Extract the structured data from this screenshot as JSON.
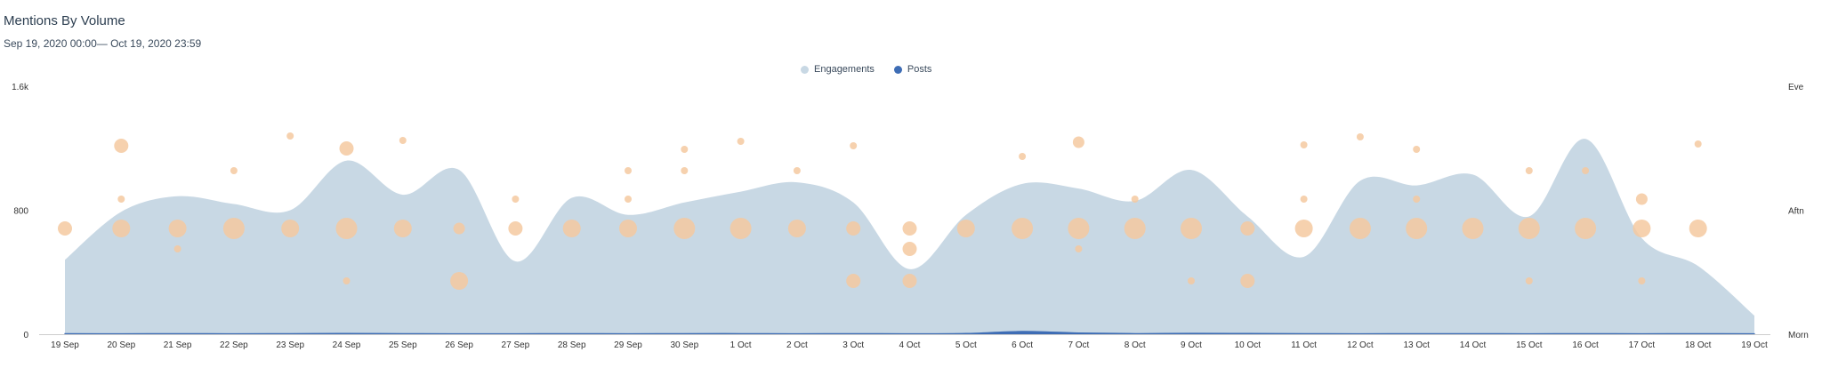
{
  "header": {
    "title": "Mentions By Volume",
    "date_range": "Sep 19, 2020 00:00— Oct 19, 2020 23:59"
  },
  "colors": {
    "engagements": "#c8d8e4",
    "posts": "#3e6db5",
    "bubble": "#f4c9a0",
    "axis": "#cccccc"
  },
  "chart_data": {
    "type": "area",
    "categories": [
      "19 Sep",
      "20 Sep",
      "21 Sep",
      "22 Sep",
      "23 Sep",
      "24 Sep",
      "25 Sep",
      "26 Sep",
      "27 Sep",
      "28 Sep",
      "29 Sep",
      "30 Sep",
      "1 Oct",
      "2 Oct",
      "3 Oct",
      "4 Oct",
      "5 Oct",
      "6 Oct",
      "7 Oct",
      "8 Oct",
      "9 Oct",
      "10 Oct",
      "11 Oct",
      "12 Oct",
      "13 Oct",
      "14 Oct",
      "15 Oct",
      "16 Oct",
      "17 Oct",
      "18 Oct",
      "19 Oct"
    ],
    "ylim": [
      0,
      1600
    ],
    "y_ticks": [
      "0",
      "800",
      "1.6k"
    ],
    "right_ticks": [
      "Morn",
      "Aftn",
      "Eve"
    ],
    "legend": {
      "placement": "top-center"
    },
    "grid": false,
    "series": [
      {
        "name": "Engagements",
        "values": [
          480,
          790,
          890,
          840,
          800,
          1120,
          900,
          1060,
          470,
          880,
          770,
          850,
          920,
          980,
          850,
          420,
          770,
          970,
          940,
          860,
          1060,
          760,
          500,
          990,
          960,
          1030,
          760,
          1260,
          620,
          440,
          120
        ]
      },
      {
        "name": "Posts",
        "values": [
          4,
          3,
          4,
          3,
          4,
          5,
          4,
          3,
          3,
          4,
          3,
          4,
          4,
          3,
          4,
          3,
          5,
          18,
          8,
          4,
          6,
          5,
          4,
          3,
          4,
          4,
          3,
          4,
          3,
          4,
          3
        ]
      }
    ],
    "bubbles": [
      {
        "day": "19 Sep",
        "slot": "Aftn",
        "size": 3
      },
      {
        "day": "20 Sep",
        "slot": "Aftn",
        "size": 4
      },
      {
        "day": "20 Sep",
        "slot": "Eve",
        "size": 3
      },
      {
        "day": "20 Sep",
        "slot": "Aftn+",
        "size": 1
      },
      {
        "day": "21 Sep",
        "slot": "Aftn",
        "size": 4
      },
      {
        "day": "21 Sep",
        "slot": "Aftn-",
        "size": 1
      },
      {
        "day": "22 Sep",
        "slot": "Aftn",
        "size": 5
      },
      {
        "day": "22 Sep",
        "slot": "Eve-",
        "size": 1
      },
      {
        "day": "23 Sep",
        "slot": "Aftn",
        "size": 4
      },
      {
        "day": "23 Sep",
        "slot": "Eve",
        "size": 1
      },
      {
        "day": "24 Sep",
        "slot": "Aftn",
        "size": 5
      },
      {
        "day": "24 Sep",
        "slot": "Eve",
        "size": 3
      },
      {
        "day": "24 Sep",
        "slot": "Morn+",
        "size": 1
      },
      {
        "day": "25 Sep",
        "slot": "Aftn",
        "size": 4
      },
      {
        "day": "25 Sep",
        "slot": "Eve",
        "size": 1
      },
      {
        "day": "26 Sep",
        "slot": "Aftn",
        "size": 2
      },
      {
        "day": "26 Sep",
        "slot": "Morn+",
        "size": 4
      },
      {
        "day": "27 Sep",
        "slot": "Aftn",
        "size": 3
      },
      {
        "day": "27 Sep",
        "slot": "Aftn+",
        "size": 1
      },
      {
        "day": "28 Sep",
        "slot": "Aftn",
        "size": 4
      },
      {
        "day": "29 Sep",
        "slot": "Aftn",
        "size": 4
      },
      {
        "day": "29 Sep",
        "slot": "Aftn+",
        "size": 1
      },
      {
        "day": "29 Sep",
        "slot": "Eve-",
        "size": 1
      },
      {
        "day": "30 Sep",
        "slot": "Aftn",
        "size": 5
      },
      {
        "day": "30 Sep",
        "slot": "Eve",
        "size": 1
      },
      {
        "day": "30 Sep",
        "slot": "Eve-",
        "size": 1
      },
      {
        "day": "1 Oct",
        "slot": "Aftn",
        "size": 5
      },
      {
        "day": "1 Oct",
        "slot": "Eve",
        "size": 1
      },
      {
        "day": "2 Oct",
        "slot": "Aftn",
        "size": 4
      },
      {
        "day": "2 Oct",
        "slot": "Eve-",
        "size": 1
      },
      {
        "day": "3 Oct",
        "slot": "Aftn",
        "size": 3
      },
      {
        "day": "3 Oct",
        "slot": "Morn+",
        "size": 3
      },
      {
        "day": "3 Oct",
        "slot": "Eve",
        "size": 1
      },
      {
        "day": "4 Oct",
        "slot": "Aftn",
        "size": 3
      },
      {
        "day": "4 Oct",
        "slot": "Aftn-",
        "size": 3
      },
      {
        "day": "4 Oct",
        "slot": "Morn+",
        "size": 3
      },
      {
        "day": "5 Oct",
        "slot": "Aftn",
        "size": 4
      },
      {
        "day": "6 Oct",
        "slot": "Aftn",
        "size": 5
      },
      {
        "day": "6 Oct",
        "slot": "Eve",
        "size": 1
      },
      {
        "day": "7 Oct",
        "slot": "Aftn",
        "size": 5
      },
      {
        "day": "7 Oct",
        "slot": "Eve",
        "size": 2
      },
      {
        "day": "7 Oct",
        "slot": "Aftn-",
        "size": 1
      },
      {
        "day": "8 Oct",
        "slot": "Aftn",
        "size": 5
      },
      {
        "day": "8 Oct",
        "slot": "Aftn+",
        "size": 1
      },
      {
        "day": "9 Oct",
        "slot": "Aftn",
        "size": 5
      },
      {
        "day": "9 Oct",
        "slot": "Morn+",
        "size": 1
      },
      {
        "day": "10 Oct",
        "slot": "Aftn",
        "size": 3
      },
      {
        "day": "10 Oct",
        "slot": "Morn+",
        "size": 3
      },
      {
        "day": "11 Oct",
        "slot": "Aftn",
        "size": 4
      },
      {
        "day": "11 Oct",
        "slot": "Eve",
        "size": 1
      },
      {
        "day": "11 Oct",
        "slot": "Aftn+",
        "size": 1
      },
      {
        "day": "12 Oct",
        "slot": "Aftn",
        "size": 5
      },
      {
        "day": "12 Oct",
        "slot": "Eve",
        "size": 1
      },
      {
        "day": "13 Oct",
        "slot": "Aftn",
        "size": 5
      },
      {
        "day": "13 Oct",
        "slot": "Eve",
        "size": 1
      },
      {
        "day": "13 Oct",
        "slot": "Aftn+",
        "size": 1
      },
      {
        "day": "14 Oct",
        "slot": "Aftn",
        "size": 5
      },
      {
        "day": "15 Oct",
        "slot": "Aftn",
        "size": 5
      },
      {
        "day": "15 Oct",
        "slot": "Eve-",
        "size": 1
      },
      {
        "day": "15 Oct",
        "slot": "Morn+",
        "size": 1
      },
      {
        "day": "16 Oct",
        "slot": "Aftn",
        "size": 5
      },
      {
        "day": "16 Oct",
        "slot": "Eve-",
        "size": 1
      },
      {
        "day": "17 Oct",
        "slot": "Aftn",
        "size": 4
      },
      {
        "day": "17 Oct",
        "slot": "Aftn+",
        "size": 2
      },
      {
        "day": "17 Oct",
        "slot": "Morn+",
        "size": 1
      },
      {
        "day": "18 Oct",
        "slot": "Aftn",
        "size": 4
      },
      {
        "day": "18 Oct",
        "slot": "Eve",
        "size": 1
      }
    ]
  }
}
